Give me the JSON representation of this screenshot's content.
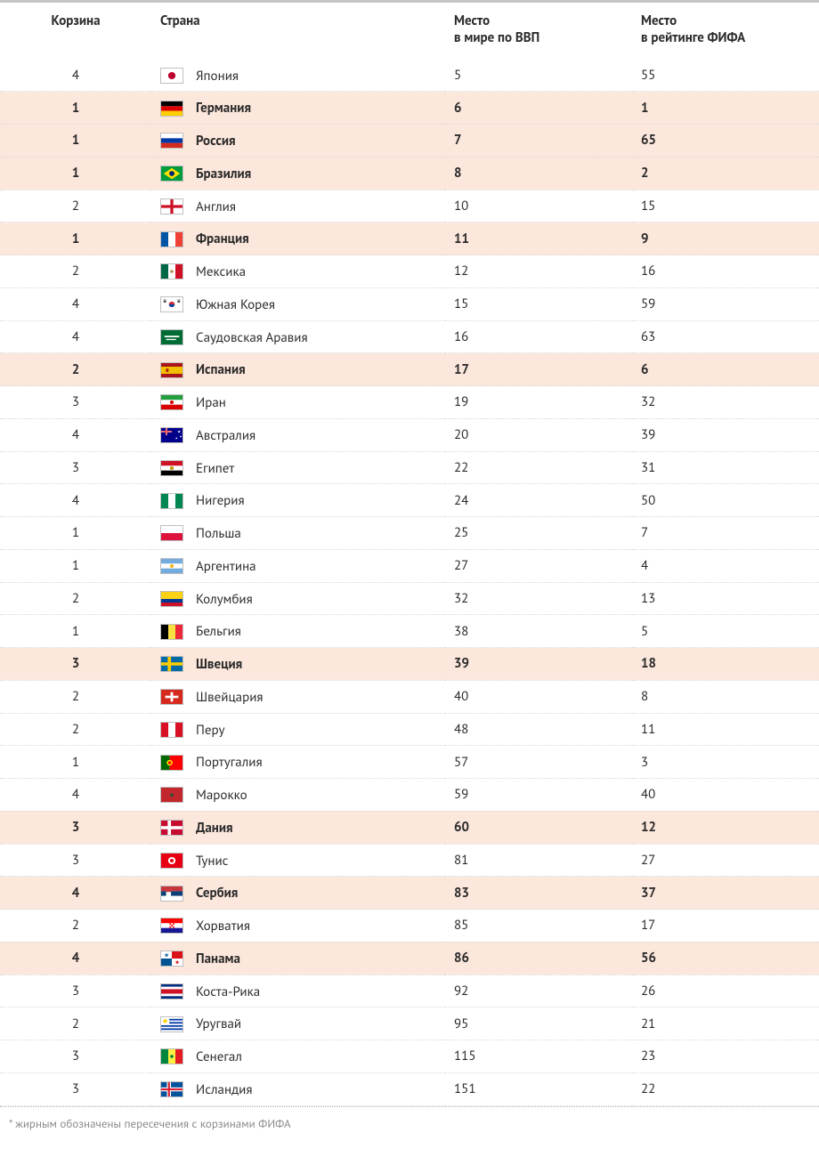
{
  "columns": {
    "pot": "Корзина",
    "country": "Страна",
    "gdp": "Место\nв мире по ВВП",
    "fifa": "Место\nв рейтинге ФИФА"
  },
  "footnote": "* жирным обозначены пересечения с корзинами ФИФА",
  "highlight_bg": "#fce7dc",
  "rows": [
    {
      "pot": 4,
      "country": "Япония",
      "gdp": 5,
      "fifa": 55,
      "hl": false,
      "flag": "japan"
    },
    {
      "pot": 1,
      "country": "Германия",
      "gdp": 6,
      "fifa": 1,
      "hl": true,
      "flag": "germany"
    },
    {
      "pot": 1,
      "country": "Россия",
      "gdp": 7,
      "fifa": 65,
      "hl": true,
      "flag": "russia"
    },
    {
      "pot": 1,
      "country": "Бразилия",
      "gdp": 8,
      "fifa": 2,
      "hl": true,
      "flag": "brazil"
    },
    {
      "pot": 2,
      "country": "Англия",
      "gdp": 10,
      "fifa": 15,
      "hl": false,
      "flag": "england"
    },
    {
      "pot": 1,
      "country": "Франция",
      "gdp": 11,
      "fifa": 9,
      "hl": true,
      "flag": "france"
    },
    {
      "pot": 2,
      "country": "Мексика",
      "gdp": 12,
      "fifa": 16,
      "hl": false,
      "flag": "mexico"
    },
    {
      "pot": 4,
      "country": "Южная Корея",
      "gdp": 15,
      "fifa": 59,
      "hl": false,
      "flag": "korea"
    },
    {
      "pot": 4,
      "country": "Саудовская Аравия",
      "gdp": 16,
      "fifa": 63,
      "hl": false,
      "flag": "saudi"
    },
    {
      "pot": 2,
      "country": "Испания",
      "gdp": 17,
      "fifa": 6,
      "hl": true,
      "flag": "spain"
    },
    {
      "pot": 3,
      "country": "Иран",
      "gdp": 19,
      "fifa": 32,
      "hl": false,
      "flag": "iran"
    },
    {
      "pot": 4,
      "country": "Австралия",
      "gdp": 20,
      "fifa": 39,
      "hl": false,
      "flag": "australia"
    },
    {
      "pot": 3,
      "country": "Египет",
      "gdp": 22,
      "fifa": 31,
      "hl": false,
      "flag": "egypt"
    },
    {
      "pot": 4,
      "country": "Нигерия",
      "gdp": 24,
      "fifa": 50,
      "hl": false,
      "flag": "nigeria"
    },
    {
      "pot": 1,
      "country": "Польша",
      "gdp": 25,
      "fifa": 7,
      "hl": false,
      "flag": "poland"
    },
    {
      "pot": 1,
      "country": "Аргентина",
      "gdp": 27,
      "fifa": 4,
      "hl": false,
      "flag": "argentina"
    },
    {
      "pot": 2,
      "country": "Колумбия",
      "gdp": 32,
      "fifa": 13,
      "hl": false,
      "flag": "colombia"
    },
    {
      "pot": 1,
      "country": "Бельгия",
      "gdp": 38,
      "fifa": 5,
      "hl": false,
      "flag": "belgium"
    },
    {
      "pot": 3,
      "country": "Швеция",
      "gdp": 39,
      "fifa": 18,
      "hl": true,
      "flag": "sweden"
    },
    {
      "pot": 2,
      "country": "Швейцария",
      "gdp": 40,
      "fifa": 8,
      "hl": false,
      "flag": "switzerland"
    },
    {
      "pot": 2,
      "country": "Перу",
      "gdp": 48,
      "fifa": 11,
      "hl": false,
      "flag": "peru"
    },
    {
      "pot": 1,
      "country": "Португалия",
      "gdp": 57,
      "fifa": 3,
      "hl": false,
      "flag": "portugal"
    },
    {
      "pot": 4,
      "country": "Марокко",
      "gdp": 59,
      "fifa": 40,
      "hl": false,
      "flag": "morocco"
    },
    {
      "pot": 3,
      "country": "Дания",
      "gdp": 60,
      "fifa": 12,
      "hl": true,
      "flag": "denmark"
    },
    {
      "pot": 3,
      "country": "Тунис",
      "gdp": 81,
      "fifa": 27,
      "hl": false,
      "flag": "tunisia"
    },
    {
      "pot": 4,
      "country": "Сербия",
      "gdp": 83,
      "fifa": 37,
      "hl": true,
      "flag": "serbia"
    },
    {
      "pot": 2,
      "country": "Хорватия",
      "gdp": 85,
      "fifa": 17,
      "hl": false,
      "flag": "croatia"
    },
    {
      "pot": 4,
      "country": "Панама",
      "gdp": 86,
      "fifa": 56,
      "hl": true,
      "flag": "panama"
    },
    {
      "pot": 3,
      "country": "Коста-Рика",
      "gdp": 92,
      "fifa": 26,
      "hl": false,
      "flag": "costarica"
    },
    {
      "pot": 2,
      "country": "Уругвай",
      "gdp": 95,
      "fifa": 21,
      "hl": false,
      "flag": "uruguay"
    },
    {
      "pot": 3,
      "country": "Сенегал",
      "gdp": 115,
      "fifa": 23,
      "hl": false,
      "flag": "senegal"
    },
    {
      "pot": 3,
      "country": "Исландия",
      "gdp": 151,
      "fifa": 22,
      "hl": false,
      "flag": "iceland"
    }
  ],
  "flags": {
    "japan": {
      "type": "disc",
      "bg": "#ffffff",
      "disc": "#bc002d"
    },
    "germany": {
      "type": "h3",
      "c": [
        "#000000",
        "#dd0000",
        "#ffce00"
      ]
    },
    "russia": {
      "type": "h3",
      "c": [
        "#ffffff",
        "#0039a6",
        "#d52b1e"
      ]
    },
    "brazil": {
      "type": "brazil"
    },
    "england": {
      "type": "eng"
    },
    "france": {
      "type": "v3",
      "c": [
        "#0055a4",
        "#ffffff",
        "#ef4135"
      ]
    },
    "mexico": {
      "type": "v3",
      "c": [
        "#006847",
        "#ffffff",
        "#ce1126"
      ],
      "center_dot": "#b08d57"
    },
    "korea": {
      "type": "korea"
    },
    "saudi": {
      "type": "solid",
      "bg": "#006c35",
      "text": "#ffffff"
    },
    "spain": {
      "type": "spain"
    },
    "iran": {
      "type": "h3",
      "c": [
        "#239f40",
        "#ffffff",
        "#da0000"
      ],
      "center_dot": "#da0000"
    },
    "australia": {
      "type": "aus"
    },
    "egypt": {
      "type": "h3",
      "c": [
        "#ce1126",
        "#ffffff",
        "#000000"
      ],
      "center_dot": "#c09300"
    },
    "nigeria": {
      "type": "v3",
      "c": [
        "#008751",
        "#ffffff",
        "#008751"
      ]
    },
    "poland": {
      "type": "h2",
      "c": [
        "#ffffff",
        "#dc143c"
      ]
    },
    "argentina": {
      "type": "h3",
      "c": [
        "#74acdf",
        "#ffffff",
        "#74acdf"
      ],
      "center_dot": "#f6b40e"
    },
    "colombia": {
      "type": "colombia"
    },
    "belgium": {
      "type": "v3",
      "c": [
        "#000000",
        "#fae042",
        "#ed2939"
      ]
    },
    "sweden": {
      "type": "nordic",
      "bg": "#006aa7",
      "cross": "#fecc00"
    },
    "switzerland": {
      "type": "swiss"
    },
    "peru": {
      "type": "v3",
      "c": [
        "#d91023",
        "#ffffff",
        "#d91023"
      ]
    },
    "portugal": {
      "type": "portugal"
    },
    "morocco": {
      "type": "solid",
      "bg": "#c1272d",
      "star": "#006233"
    },
    "denmark": {
      "type": "nordic",
      "bg": "#c60c30",
      "cross": "#ffffff"
    },
    "tunisia": {
      "type": "disc",
      "bg": "#e70013",
      "disc": "#ffffff",
      "inner": "#e70013"
    },
    "serbia": {
      "type": "h3",
      "c": [
        "#c6363c",
        "#0c4076",
        "#ffffff"
      ],
      "shield": true
    },
    "croatia": {
      "type": "h3",
      "c": [
        "#ff0000",
        "#ffffff",
        "#171796"
      ],
      "checker": true
    },
    "panama": {
      "type": "panama"
    },
    "costarica": {
      "type": "costarica"
    },
    "uruguay": {
      "type": "uruguay"
    },
    "senegal": {
      "type": "v3",
      "c": [
        "#00853f",
        "#fdef42",
        "#e31b23"
      ],
      "center_dot": "#00853f"
    },
    "iceland": {
      "type": "iceland"
    }
  }
}
